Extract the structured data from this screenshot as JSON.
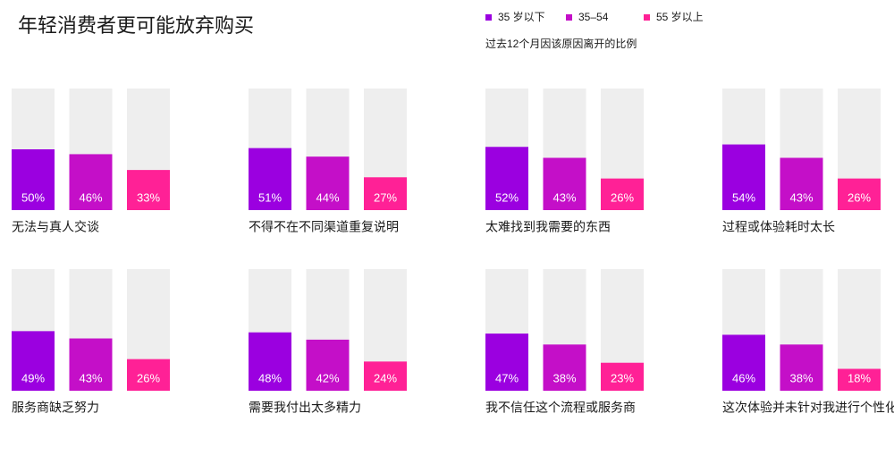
{
  "title": "年轻消费者更可能放弃购买",
  "subtitle": "过去12个月因该原因离开的比例",
  "legend": [
    {
      "name": "35 岁以下",
      "color": "#9b00e0"
    },
    {
      "name": "35–54",
      "color": "#c40fc8"
    },
    {
      "name": "55 岁以上",
      "color": "#ff2196"
    }
  ],
  "chart_data": [
    {
      "type": "bar",
      "label": "无法与真人交谈",
      "values": [
        50,
        46,
        33
      ],
      "value_labels": [
        "50%",
        "46%",
        "33%"
      ],
      "ylim": [
        0,
        100
      ]
    },
    {
      "type": "bar",
      "label": "不得不在不同渠道重复说明",
      "values": [
        51,
        44,
        27
      ],
      "value_labels": [
        "51%",
        "44%",
        "27%"
      ],
      "ylim": [
        0,
        100
      ]
    },
    {
      "type": "bar",
      "label": "太难找到我需要的东西",
      "values": [
        52,
        43,
        26
      ],
      "value_labels": [
        "52%",
        "43%",
        "26%"
      ],
      "ylim": [
        0,
        100
      ]
    },
    {
      "type": "bar",
      "label": "过程或体验耗时太长",
      "values": [
        54,
        43,
        26
      ],
      "value_labels": [
        "54%",
        "43%",
        "26%"
      ],
      "ylim": [
        0,
        100
      ]
    },
    {
      "type": "bar",
      "label": "服务商缺乏努力",
      "values": [
        49,
        43,
        26
      ],
      "value_labels": [
        "49%",
        "43%",
        "26%"
      ],
      "ylim": [
        0,
        100
      ]
    },
    {
      "type": "bar",
      "label": "需要我付出太多精力",
      "values": [
        48,
        42,
        24
      ],
      "value_labels": [
        "48%",
        "42%",
        "24%"
      ],
      "ylim": [
        0,
        100
      ]
    },
    {
      "type": "bar",
      "label": "我不信任这个流程或服务商",
      "values": [
        47,
        38,
        23
      ],
      "value_labels": [
        "47%",
        "38%",
        "23%"
      ],
      "ylim": [
        0,
        100
      ]
    },
    {
      "type": "bar",
      "label": "这次体验并未针对我进行个性化",
      "values": [
        46,
        38,
        18
      ],
      "value_labels": [
        "46%",
        "38%",
        "18%"
      ],
      "ylim": [
        0,
        100
      ]
    }
  ]
}
